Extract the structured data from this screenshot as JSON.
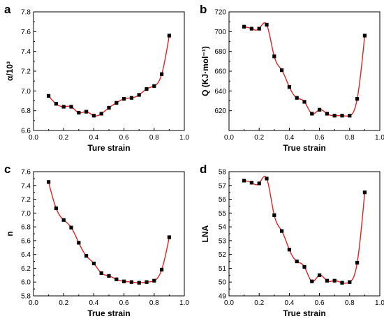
{
  "style": {
    "marker_color": "#000000",
    "fit_color": "#e32222"
  },
  "chart_data": [
    {
      "type": "scatter",
      "panel": "a",
      "xlabel": "Ture strain",
      "ylabel": "α/10³",
      "xlim": [
        0.0,
        1.0
      ],
      "ylim": [
        6.6,
        7.8
      ],
      "x_ticks": [
        "0.0",
        "0.2",
        "0.4",
        "0.6",
        "0.8",
        "1.0"
      ],
      "y_ticks": [
        "6.6",
        "6.8",
        "7.0",
        "7.2",
        "7.4",
        "7.6",
        "7.8"
      ],
      "x": [
        0.1,
        0.15,
        0.2,
        0.25,
        0.3,
        0.35,
        0.4,
        0.45,
        0.5,
        0.55,
        0.6,
        0.65,
        0.7,
        0.75,
        0.8,
        0.85,
        0.9
      ],
      "y": [
        6.95,
        6.87,
        6.84,
        6.84,
        6.78,
        6.79,
        6.75,
        6.77,
        6.83,
        6.88,
        6.92,
        6.93,
        6.96,
        7.02,
        7.05,
        7.17,
        7.56
      ],
      "fit_line": true
    },
    {
      "type": "scatter",
      "panel": "b",
      "xlabel": "True strain",
      "ylabel": "Q (KJ·mol⁻¹)",
      "xlim": [
        0.0,
        1.0
      ],
      "ylim": [
        600,
        720
      ],
      "x_ticks": [
        "0.0",
        "0.2",
        "0.4",
        "0.6",
        "0.8",
        "1.0"
      ],
      "y_ticks": [
        "620",
        "640",
        "660",
        "680",
        "700",
        "720"
      ],
      "x": [
        0.1,
        0.15,
        0.2,
        0.25,
        0.3,
        0.35,
        0.4,
        0.45,
        0.5,
        0.55,
        0.6,
        0.65,
        0.7,
        0.75,
        0.8,
        0.85,
        0.9
      ],
      "y": [
        705,
        703,
        703,
        707,
        675,
        661,
        644,
        633,
        629,
        617,
        621,
        617,
        615,
        615,
        615,
        632,
        696
      ],
      "fit_line": true
    },
    {
      "type": "scatter",
      "panel": "c",
      "xlabel": "True strain",
      "ylabel": "n",
      "xlim": [
        0.0,
        1.0
      ],
      "ylim": [
        5.8,
        7.6
      ],
      "x_ticks": [
        "0.0",
        "0.2",
        "0.4",
        "0.6",
        "0.8",
        "1.0"
      ],
      "y_ticks": [
        "5.8",
        "6.0",
        "6.2",
        "6.4",
        "6.6",
        "6.8",
        "7.0",
        "7.2",
        "7.4",
        "7.6"
      ],
      "x": [
        0.1,
        0.15,
        0.2,
        0.25,
        0.3,
        0.35,
        0.4,
        0.45,
        0.5,
        0.55,
        0.6,
        0.65,
        0.7,
        0.75,
        0.8,
        0.85,
        0.9
      ],
      "y": [
        7.45,
        7.07,
        6.9,
        6.79,
        6.57,
        6.38,
        6.27,
        6.13,
        6.09,
        6.04,
        6.01,
        6.0,
        5.99,
        6.0,
        6.02,
        6.18,
        6.65
      ],
      "fit_line": true
    },
    {
      "type": "scatter",
      "panel": "d",
      "xlabel": "True strain",
      "ylabel": "LNA",
      "xlim": [
        0.0,
        1.0
      ],
      "ylim": [
        49,
        58
      ],
      "x_ticks": [
        "0.0",
        "0.2",
        "0.4",
        "0.6",
        "0.8",
        "1.0"
      ],
      "y_ticks": [
        "49",
        "50",
        "51",
        "52",
        "53",
        "54",
        "55",
        "56",
        "57",
        "58"
      ],
      "x": [
        0.1,
        0.15,
        0.2,
        0.25,
        0.3,
        0.35,
        0.4,
        0.45,
        0.5,
        0.55,
        0.6,
        0.65,
        0.7,
        0.75,
        0.8,
        0.85,
        0.9
      ],
      "y": [
        57.35,
        57.2,
        57.15,
        57.5,
        54.85,
        53.7,
        52.35,
        51.5,
        51.1,
        50.05,
        50.5,
        50.1,
        50.1,
        49.95,
        50.0,
        51.4,
        56.5
      ],
      "fit_line": true
    }
  ]
}
